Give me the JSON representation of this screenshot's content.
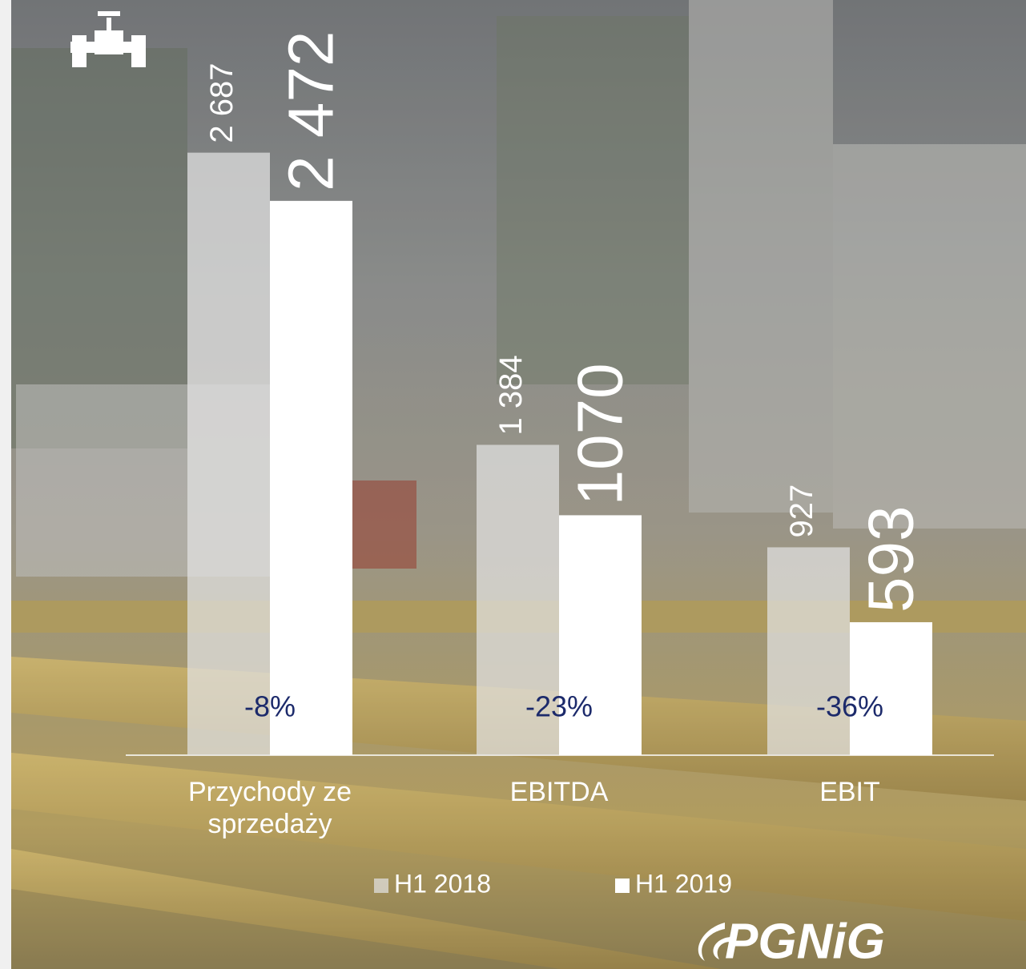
{
  "chart_data": {
    "type": "bar",
    "categories": [
      "Przychody ze sprzedaży",
      "EBITDA",
      "EBIT"
    ],
    "series": [
      {
        "name": "H1 2018",
        "color": "#e2e2e2",
        "values": [
          2687,
          1384,
          927
        ],
        "value_labels": [
          "2 687",
          "1 384",
          "927"
        ]
      },
      {
        "name": "H1 2019",
        "color": "#ffffff",
        "values": [
          2472,
          1070,
          593
        ],
        "value_labels": [
          "2 472",
          "1070",
          "593"
        ]
      }
    ],
    "annotations": [
      "-8%",
      "-23%",
      "-36%"
    ]
  },
  "logo": "PGNiG"
}
